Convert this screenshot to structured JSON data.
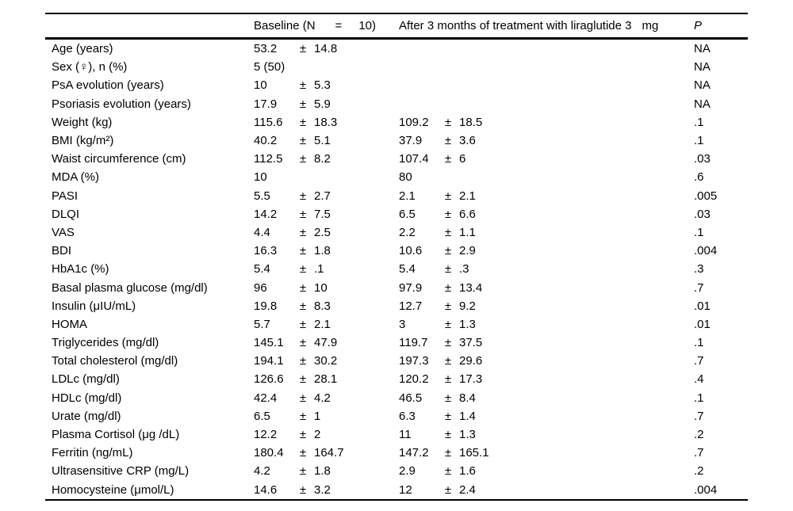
{
  "colors": {
    "background": "#ffffff",
    "text": "#000000",
    "rule": "#000000"
  },
  "table": {
    "pm": "±",
    "header": {
      "label": "",
      "baseline_part1": "Baseline (N",
      "baseline_eq": "=",
      "baseline_part2": "10)",
      "after_text": "After 3 months of treatment with liraglutide 3",
      "after_unit": "mg",
      "p": "P"
    },
    "rows": [
      {
        "label": "Age (years)",
        "baseline": {
          "value": "53.2",
          "sd": "14.8"
        },
        "after": null,
        "p": "NA"
      },
      {
        "label": "Sex (♀), n (%)",
        "baseline": {
          "value": "5 (50)",
          "sd": null
        },
        "after": null,
        "p": "NA"
      },
      {
        "label": "PsA evolution (years)",
        "baseline": {
          "value": "10",
          "sd": "5.3"
        },
        "after": null,
        "p": "NA"
      },
      {
        "label": "Psoriasis evolution (years)",
        "baseline": {
          "value": "17.9",
          "sd": "5.9"
        },
        "after": null,
        "p": "NA"
      },
      {
        "label": "Weight (kg)",
        "baseline": {
          "value": "115.6",
          "sd": "18.3"
        },
        "after": {
          "value": "109.2",
          "sd": "18.5"
        },
        "p": ".1"
      },
      {
        "label": "BMI (kg/m²)",
        "baseline": {
          "value": "40.2",
          "sd": "5.1"
        },
        "after": {
          "value": "37.9",
          "sd": "3.6"
        },
        "p": ".1"
      },
      {
        "label": "Waist circumference (cm)",
        "baseline": {
          "value": "112.5",
          "sd": "8.2"
        },
        "after": {
          "value": "107.4",
          "sd": "6"
        },
        "p": ".03"
      },
      {
        "label": "MDA (%)",
        "baseline": {
          "value": "10",
          "sd": null
        },
        "after": {
          "value": "80",
          "sd": null
        },
        "p": ".6"
      },
      {
        "label": "PASI",
        "baseline": {
          "value": "5.5",
          "sd": "2.7"
        },
        "after": {
          "value": "2.1",
          "sd": "2.1"
        },
        "p": ".005"
      },
      {
        "label": "DLQI",
        "baseline": {
          "value": "14.2",
          "sd": "7.5"
        },
        "after": {
          "value": "6.5",
          "sd": "6.6"
        },
        "p": ".03"
      },
      {
        "label": "VAS",
        "baseline": {
          "value": "4.4",
          "sd": "2.5"
        },
        "after": {
          "value": "2.2",
          "sd": "1.1"
        },
        "p": ".1"
      },
      {
        "label": "BDI",
        "baseline": {
          "value": "16.3",
          "sd": "1.8"
        },
        "after": {
          "value": "10.6",
          "sd": "2.9"
        },
        "p": ".004"
      },
      {
        "label": "HbA1c (%)",
        "baseline": {
          "value": "5.4",
          "sd": ".1"
        },
        "after": {
          "value": "5.4",
          "sd": ".3"
        },
        "p": ".3"
      },
      {
        "label": "Basal plasma glucose (mg/dl)",
        "baseline": {
          "value": "96",
          "sd": "10"
        },
        "after": {
          "value": "97.9",
          "sd": "13.4"
        },
        "p": ".7"
      },
      {
        "label": "Insulin (μIU/mL)",
        "baseline": {
          "value": "19.8",
          "sd": "8.3"
        },
        "after": {
          "value": "12.7",
          "sd": "9.2"
        },
        "p": ".01"
      },
      {
        "label": "HOMA",
        "baseline": {
          "value": "5.7",
          "sd": "2.1"
        },
        "after": {
          "value": "3",
          "sd": "1.3"
        },
        "p": ".01"
      },
      {
        "label": "Triglycerides (mg/dl)",
        "baseline": {
          "value": "145.1",
          "sd": "47.9"
        },
        "after": {
          "value": "119.7",
          "sd": "37.5"
        },
        "p": ".1"
      },
      {
        "label": "Total cholesterol (mg/dl)",
        "baseline": {
          "value": "194.1",
          "sd": "30.2"
        },
        "after": {
          "value": "197.3",
          "sd": "29.6"
        },
        "p": ".7"
      },
      {
        "label": "LDLc (mg/dl)",
        "baseline": {
          "value": "126.6",
          "sd": "28.1"
        },
        "after": {
          "value": "120.2",
          "sd": "17.3"
        },
        "p": ".4"
      },
      {
        "label": "HDLc (mg/dl)",
        "baseline": {
          "value": "42.4",
          "sd": "4.2"
        },
        "after": {
          "value": "46.5",
          "sd": "8.4"
        },
        "p": ".1"
      },
      {
        "label": "Urate (mg/dl)",
        "baseline": {
          "value": "6.5",
          "sd": "1"
        },
        "after": {
          "value": "6.3",
          "sd": "1.4"
        },
        "p": ".7"
      },
      {
        "label": "Plasma Cortisol (μg /dL)",
        "baseline": {
          "value": "12.2",
          "sd": "2"
        },
        "after": {
          "value": "11",
          "sd": "1.3"
        },
        "p": ".2"
      },
      {
        "label": "Ferritin (ng/mL)",
        "baseline": {
          "value": "180.4",
          "sd": "164.7"
        },
        "after": {
          "value": "147.2",
          "sd": "165.1"
        },
        "p": ".7"
      },
      {
        "label": "Ultrasensitive CRP (mg/L)",
        "baseline": {
          "value": "4.2",
          "sd": "1.8"
        },
        "after": {
          "value": "2.9",
          "sd": "1.6"
        },
        "p": ".2"
      },
      {
        "label": "Homocysteine (μmol/L)",
        "baseline": {
          "value": "14.6",
          "sd": "3.2"
        },
        "after": {
          "value": "12",
          "sd": "2.4"
        },
        "p": ".004"
      }
    ]
  }
}
